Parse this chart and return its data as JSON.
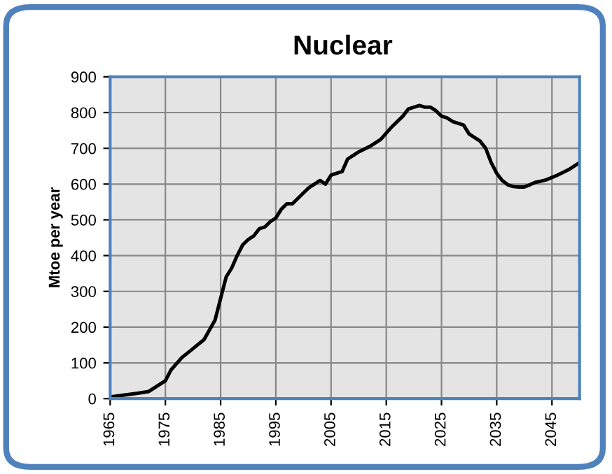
{
  "chart_data": {
    "type": "line",
    "title": "Nuclear",
    "ylabel": "Mtoe per year",
    "x": [
      1965,
      1970,
      1972,
      1975,
      1976,
      1978,
      1980,
      1982,
      1984,
      1985,
      1986,
      1987,
      1988,
      1989,
      1990,
      1991,
      1992,
      1993,
      1994,
      1995,
      1996,
      1997,
      1998,
      1999,
      2000,
      2001,
      2002,
      2003,
      2004,
      2005,
      2006,
      2007,
      2008,
      2009,
      2010,
      2012,
      2014,
      2016,
      2018,
      2019,
      2020,
      2021,
      2022,
      2023,
      2024,
      2025,
      2026,
      2027,
      2028,
      2029,
      2030,
      2032,
      2033,
      2034,
      2035,
      2036,
      2037,
      2038,
      2039,
      2040,
      2041,
      2042,
      2043,
      2044,
      2046,
      2048,
      2050
    ],
    "series": [
      {
        "color": "#000000",
        "values": [
          5,
          15,
          20,
          50,
          80,
          115,
          140,
          165,
          220,
          280,
          340,
          365,
          400,
          430,
          445,
          455,
          475,
          480,
          495,
          505,
          530,
          545,
          545,
          560,
          575,
          590,
          600,
          610,
          600,
          625,
          630,
          635,
          670,
          680,
          690,
          705,
          725,
          760,
          790,
          810,
          815,
          820,
          815,
          815,
          805,
          790,
          785,
          775,
          770,
          765,
          740,
          720,
          700,
          660,
          630,
          610,
          598,
          593,
          592,
          592,
          598,
          605,
          608,
          612,
          625,
          640,
          660
        ]
      }
    ],
    "xlim": [
      1965,
      2050
    ],
    "xticks": [
      1965,
      1975,
      1985,
      1995,
      2005,
      2015,
      2025,
      2035,
      2045
    ],
    "ylim": [
      0,
      900
    ],
    "yticks": [
      0,
      100,
      200,
      300,
      400,
      500,
      600,
      700,
      800,
      900
    ],
    "grid": true,
    "marker": "none",
    "line_style": "solid",
    "legend": false
  }
}
